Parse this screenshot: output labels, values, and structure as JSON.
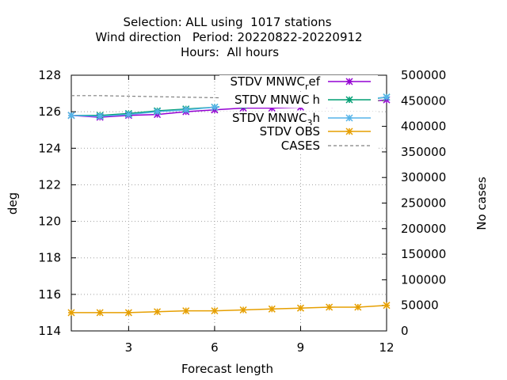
{
  "chart_data": {
    "type": "line",
    "title_lines": [
      "Selection: ALL using  1017 stations",
      "Wind direction   Period: 20220822-20220912",
      "Hours:  All hours"
    ],
    "xlabel": "Forecast length",
    "ylabel": "deg",
    "y2label": "No cases",
    "xlim": [
      1,
      12
    ],
    "ylim": [
      114,
      128
    ],
    "y2lim": [
      0,
      500000
    ],
    "x_ticks": [
      3,
      6,
      9,
      12
    ],
    "y_ticks": [
      114,
      116,
      118,
      120,
      122,
      124,
      126,
      128
    ],
    "y2_ticks": [
      0,
      50000,
      100000,
      150000,
      200000,
      250000,
      300000,
      350000,
      400000,
      450000,
      500000
    ],
    "grid": true,
    "legend_position": "top-right",
    "x": [
      1,
      2,
      3,
      4,
      5,
      6,
      7,
      8,
      9,
      10,
      11,
      12
    ],
    "series": [
      {
        "legend_parts": [
          "STDV MNWC",
          "r",
          "ef"
        ],
        "color": "#9400d3",
        "marker": "star",
        "axis": "y",
        "values": [
          125.8,
          125.7,
          125.8,
          125.85,
          126.0,
          126.1,
          126.2,
          126.2,
          126.25,
          126.4,
          126.5,
          126.65
        ]
      },
      {
        "legend_parts": [
          "STDV MNWC",
          "",
          "h"
        ],
        "color": "#009e73",
        "marker": "star",
        "axis": "y",
        "values": [
          125.8,
          125.8,
          125.9,
          126.05,
          126.15,
          126.25,
          126.35,
          126.45,
          126.5,
          126.6,
          126.6,
          126.8
        ]
      },
      {
        "legend_parts": [
          "STDV MNWC",
          "3",
          "h"
        ],
        "color": "#56b4e9",
        "marker": "star",
        "axis": "y",
        "values": [
          125.8,
          125.75,
          125.85,
          126.0,
          126.1,
          126.25,
          126.4,
          126.45,
          126.5,
          126.55,
          126.65,
          126.8
        ]
      },
      {
        "legend_parts": [
          "STDV OBS",
          "",
          ""
        ],
        "color": "#e69f00",
        "marker": "star",
        "axis": "y",
        "values": [
          115.0,
          115.0,
          115.0,
          115.05,
          115.1,
          115.1,
          115.15,
          115.2,
          115.25,
          115.3,
          115.3,
          115.4
        ]
      },
      {
        "legend_parts": [
          "CASES",
          "",
          ""
        ],
        "color": "#808080",
        "marker": "none",
        "dashed": true,
        "axis": "y2",
        "values": [
          460000,
          460000,
          459000,
          458000,
          457000,
          456000,
          455000,
          454000,
          453000,
          452000,
          451000,
          450000
        ]
      }
    ]
  }
}
